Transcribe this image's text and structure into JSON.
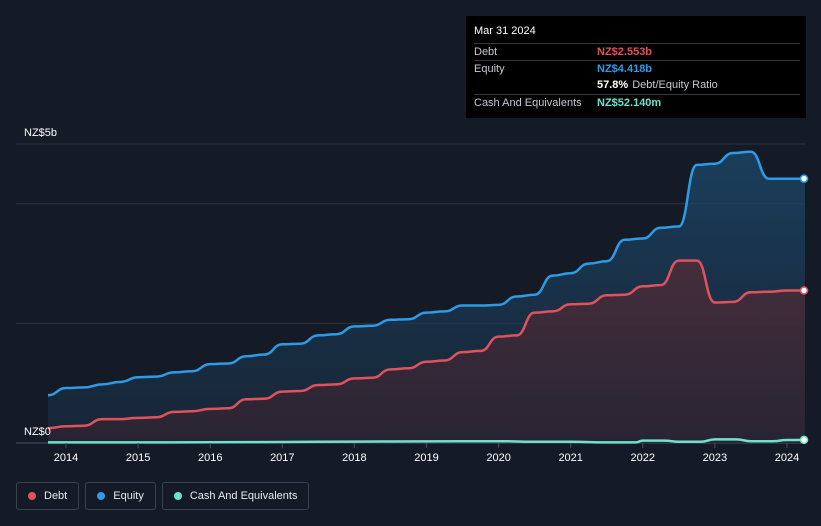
{
  "tooltip": {
    "date": "Mar 31 2024",
    "rows": [
      {
        "label": "Debt",
        "value": "NZ$2.553b",
        "color": "#e0525e"
      },
      {
        "label": "Equity",
        "value": "NZ$4.418b",
        "color": "#2e9be6"
      },
      {
        "label": "",
        "value": "57.8%",
        "note": "Debt/Equity Ratio",
        "color": "#ffffff"
      },
      {
        "label": "Cash And Equivalents",
        "value": "NZ$52.140m",
        "color": "#6fe3c9"
      }
    ]
  },
  "legend": [
    {
      "label": "Debt",
      "color": "#e0525e"
    },
    {
      "label": "Equity",
      "color": "#2e9be6"
    },
    {
      "label": "Cash And Equivalents",
      "color": "#6fe3c9"
    }
  ],
  "chart_data": {
    "type": "area",
    "y_unit": "NZ$b",
    "ylim": [
      0,
      5
    ],
    "y_tick_labels": [
      "NZ$5b",
      "NZ$0"
    ],
    "x_tick_labels": [
      "2014",
      "2015",
      "2016",
      "2017",
      "2018",
      "2019",
      "2020",
      "2021",
      "2022",
      "2023",
      "2024"
    ],
    "xlim": [
      2013.75,
      2024.25
    ],
    "grid": true,
    "legend_position": "bottom-left",
    "series": [
      {
        "name": "Equity",
        "color": "#2e9be6",
        "x": [
          2013.75,
          2014.0,
          2014.25,
          2014.5,
          2014.75,
          2015.0,
          2015.25,
          2015.5,
          2015.75,
          2016.0,
          2016.25,
          2016.5,
          2016.75,
          2017.0,
          2017.25,
          2017.5,
          2017.75,
          2018.0,
          2018.25,
          2018.5,
          2018.75,
          2019.0,
          2019.25,
          2019.5,
          2019.75,
          2020.0,
          2020.25,
          2020.5,
          2020.75,
          2021.0,
          2021.25,
          2021.5,
          2021.75,
          2022.0,
          2022.25,
          2022.5,
          2022.75,
          2023.0,
          2023.25,
          2023.5,
          2023.75,
          2024.0,
          2024.25
        ],
        "values": [
          0.8,
          0.92,
          0.93,
          0.98,
          1.02,
          1.1,
          1.11,
          1.18,
          1.2,
          1.32,
          1.33,
          1.45,
          1.48,
          1.65,
          1.66,
          1.8,
          1.82,
          1.95,
          1.96,
          2.06,
          2.07,
          2.18,
          2.2,
          2.3,
          2.3,
          2.31,
          2.45,
          2.48,
          2.8,
          2.84,
          3.0,
          3.04,
          3.4,
          3.42,
          3.6,
          3.62,
          4.65,
          4.67,
          4.85,
          4.87,
          4.42,
          4.42,
          4.42
        ]
      },
      {
        "name": "Debt",
        "color": "#e0525e",
        "x": [
          2013.75,
          2014.0,
          2014.25,
          2014.5,
          2014.75,
          2015.0,
          2015.25,
          2015.5,
          2015.75,
          2016.0,
          2016.25,
          2016.5,
          2016.75,
          2017.0,
          2017.25,
          2017.5,
          2017.75,
          2018.0,
          2018.25,
          2018.5,
          2018.75,
          2019.0,
          2019.25,
          2019.5,
          2019.75,
          2020.0,
          2020.25,
          2020.5,
          2020.75,
          2021.0,
          2021.25,
          2021.5,
          2021.75,
          2022.0,
          2022.25,
          2022.5,
          2022.75,
          2023.0,
          2023.25,
          2023.5,
          2023.75,
          2024.0,
          2024.25
        ],
        "values": [
          0.25,
          0.28,
          0.29,
          0.4,
          0.4,
          0.42,
          0.43,
          0.52,
          0.53,
          0.57,
          0.58,
          0.73,
          0.74,
          0.86,
          0.87,
          0.97,
          0.98,
          1.08,
          1.09,
          1.23,
          1.25,
          1.36,
          1.38,
          1.52,
          1.54,
          1.78,
          1.8,
          2.18,
          2.2,
          2.32,
          2.33,
          2.47,
          2.48,
          2.62,
          2.64,
          3.05,
          3.05,
          2.35,
          2.36,
          2.52,
          2.53,
          2.55,
          2.55
        ]
      },
      {
        "name": "Cash And Equivalents",
        "color": "#6fe3c9",
        "x": [
          2013.75,
          2014.5,
          2015.5,
          2016.5,
          2017.5,
          2018.5,
          2019.5,
          2020.0,
          2020.5,
          2021.0,
          2021.5,
          2021.9,
          2022.0,
          2022.3,
          2022.5,
          2022.8,
          2023.0,
          2023.3,
          2023.5,
          2023.8,
          2024.0,
          2024.25
        ],
        "values": [
          0.01,
          0.01,
          0.01,
          0.015,
          0.02,
          0.025,
          0.03,
          0.03,
          0.02,
          0.02,
          0.01,
          0.01,
          0.04,
          0.04,
          0.02,
          0.02,
          0.06,
          0.06,
          0.03,
          0.03,
          0.05,
          0.052
        ]
      }
    ]
  }
}
